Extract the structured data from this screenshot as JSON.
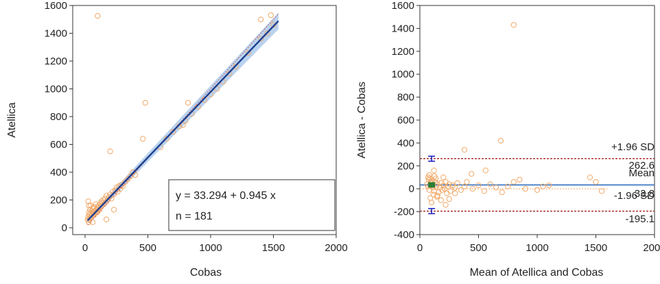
{
  "chart_data": [
    {
      "type": "scatter",
      "xlabel": "Cobas",
      "ylabel": "Atellica",
      "xlim": [
        0,
        2000
      ],
      "ylim": [
        0,
        1600
      ],
      "xticks": [
        "0",
        "500",
        "1000",
        "1500",
        "2000"
      ],
      "yticks": [
        "0",
        "200",
        "400",
        "600",
        "800",
        "1000",
        "1200",
        "1400",
        "1600"
      ],
      "points": [
        [
          20,
          60
        ],
        [
          25,
          80
        ],
        [
          30,
          55
        ],
        [
          30,
          110
        ],
        [
          35,
          95
        ],
        [
          40,
          130
        ],
        [
          40,
          70
        ],
        [
          45,
          160
        ],
        [
          50,
          100
        ],
        [
          50,
          80
        ],
        [
          55,
          120
        ],
        [
          60,
          140
        ],
        [
          60,
          95
        ],
        [
          65,
          110
        ],
        [
          70,
          150
        ],
        [
          70,
          90
        ],
        [
          75,
          120
        ],
        [
          80,
          105
        ],
        [
          85,
          170
        ],
        [
          90,
          130
        ],
        [
          95,
          110
        ],
        [
          100,
          150
        ],
        [
          100,
          120
        ],
        [
          105,
          140
        ],
        [
          110,
          160
        ],
        [
          115,
          130
        ],
        [
          120,
          175
        ],
        [
          125,
          150
        ],
        [
          130,
          190
        ],
        [
          135,
          160
        ],
        [
          140,
          180
        ],
        [
          145,
          200
        ],
        [
          150,
          170
        ],
        [
          160,
          210
        ],
        [
          165,
          185
        ],
        [
          170,
          230
        ],
        [
          180,
          200
        ],
        [
          190,
          220
        ],
        [
          200,
          240
        ],
        [
          210,
          210
        ],
        [
          220,
          260
        ],
        [
          230,
          240
        ],
        [
          240,
          270
        ],
        [
          250,
          290
        ],
        [
          260,
          260
        ],
        [
          270,
          300
        ],
        [
          280,
          280
        ],
        [
          290,
          310
        ],
        [
          300,
          300
        ],
        [
          320,
          330
        ],
        [
          340,
          350
        ],
        [
          360,
          370
        ],
        [
          380,
          400
        ],
        [
          400,
          380
        ],
        [
          25,
          190
        ],
        [
          30,
          160
        ],
        [
          60,
          40
        ],
        [
          170,
          60
        ],
        [
          230,
          130
        ],
        [
          30,
          40
        ],
        [
          600,
          580
        ],
        [
          650,
          640
        ],
        [
          700,
          690
        ],
        [
          750,
          730
        ],
        [
          800,
          770
        ],
        [
          820,
          900
        ],
        [
          850,
          820
        ],
        [
          900,
          870
        ],
        [
          950,
          920
        ],
        [
          1000,
          960
        ],
        [
          1050,
          1000
        ],
        [
          1100,
          1050
        ],
        [
          1150,
          1110
        ],
        [
          1200,
          1160
        ],
        [
          1300,
          1260
        ],
        [
          1400,
          1360
        ],
        [
          1450,
          1400
        ],
        [
          1500,
          1460
        ],
        [
          1400,
          1500
        ],
        [
          1480,
          1530
        ],
        [
          100,
          1525
        ],
        [
          200,
          550
        ],
        [
          480,
          900
        ],
        [
          460,
          640
        ],
        [
          780,
          740
        ]
      ],
      "regression": {
        "intercept": 33.294,
        "slope": 0.945,
        "xrange": [
          20,
          1540
        ]
      },
      "legend_position": "bottom-right",
      "annotation": {
        "equation": "y = 33.294 + 0.945 x",
        "n": "n = 181"
      },
      "grid": false
    },
    {
      "type": "scatter",
      "xlabel": "Mean of Atellica and Cobas",
      "ylabel": "Atellica - Cobas",
      "xlim": [
        0,
        2000
      ],
      "ylim": [
        -400,
        1600
      ],
      "xticks": [
        "0",
        "500",
        "1000",
        "1500",
        "2000"
      ],
      "yticks": [
        "-400",
        "-200",
        "0",
        "200",
        "400",
        "600",
        "800",
        "1000",
        "1200",
        "1400",
        "1600"
      ],
      "points": [
        [
          60,
          40
        ],
        [
          70,
          20
        ],
        [
          80,
          -10
        ],
        [
          90,
          50
        ],
        [
          100,
          30
        ],
        [
          110,
          10
        ],
        [
          120,
          -20
        ],
        [
          130,
          60
        ],
        [
          140,
          20
        ],
        [
          150,
          40
        ],
        [
          160,
          -30
        ],
        [
          170,
          10
        ],
        [
          180,
          50
        ],
        [
          190,
          -10
        ],
        [
          200,
          30
        ],
        [
          210,
          0
        ],
        [
          220,
          60
        ],
        [
          230,
          -40
        ],
        [
          240,
          20
        ],
        [
          250,
          40
        ],
        [
          260,
          -20
        ],
        [
          280,
          30
        ],
        [
          300,
          10
        ],
        [
          320,
          50
        ],
        [
          350,
          -10
        ],
        [
          380,
          20
        ],
        [
          400,
          60
        ],
        [
          450,
          0
        ],
        [
          500,
          30
        ],
        [
          550,
          -20
        ],
        [
          600,
          40
        ],
        [
          650,
          10
        ],
        [
          700,
          -30
        ],
        [
          750,
          20
        ],
        [
          800,
          60
        ],
        [
          850,
          80
        ],
        [
          900,
          0
        ],
        [
          1000,
          -10
        ],
        [
          1050,
          20
        ],
        [
          1100,
          30
        ],
        [
          80,
          120
        ],
        [
          90,
          -80
        ],
        [
          100,
          -120
        ],
        [
          120,
          160
        ],
        [
          150,
          -60
        ],
        [
          200,
          100
        ],
        [
          250,
          -90
        ],
        [
          300,
          -40
        ],
        [
          180,
          -100
        ],
        [
          75,
          80
        ],
        [
          70,
          100
        ],
        [
          85,
          90
        ],
        [
          95,
          60
        ],
        [
          105,
          70
        ],
        [
          115,
          -50
        ],
        [
          125,
          110
        ],
        [
          135,
          90
        ],
        [
          145,
          -70
        ],
        [
          1450,
          100
        ],
        [
          1500,
          60
        ],
        [
          1550,
          -20
        ],
        [
          380,
          340
        ],
        [
          560,
          160
        ],
        [
          690,
          420
        ],
        [
          800,
          1430
        ],
        [
          440,
          130
        ],
        [
          220,
          -140
        ]
      ],
      "mean_line": 33.8,
      "upper_loa": 262.6,
      "lower_loa": -195.1,
      "labels": {
        "upper": "+1.96 SD",
        "upper_value": "262.6",
        "mean": "Mean",
        "mean_value": "33.8",
        "lower": "-1.96 SD",
        "lower_value": "-195.1"
      },
      "grid": false
    }
  ],
  "colors": {
    "point": "#f0a868",
    "regression": "#1f3f8f",
    "band": "#9dc0e8",
    "identity": "#c04040",
    "mean": "#2f6fc0",
    "loa": "#a02020",
    "errorbar": "#2020c0",
    "mean_marker": "#2e7d32"
  }
}
